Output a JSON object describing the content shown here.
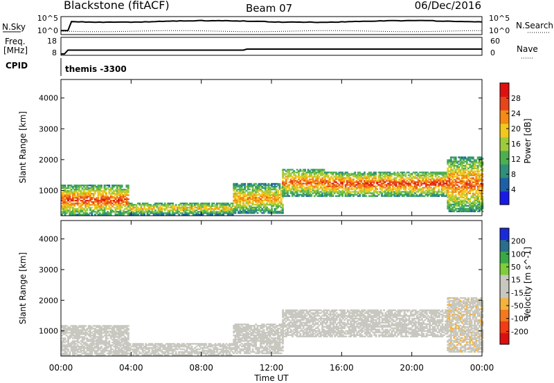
{
  "header": {
    "station": "Blackstone (fitACF)",
    "beam": "Beam 07",
    "date": "06/Dec/2016"
  },
  "noise_panel": {
    "left_label": "N.Sky",
    "right_label": "N.Search",
    "left_ticks": [
      "10^5",
      "10^0"
    ],
    "right_ticks": [
      "10^5",
      "10^0"
    ],
    "line_styles": {
      "sky": "solid",
      "search": "dotted"
    }
  },
  "freq_panel": {
    "left_label_1": "Freq.",
    "left_label_2": "[MHz]",
    "right_label": "Nave",
    "left_ticks": [
      "18",
      "8"
    ],
    "right_ticks": [
      "60",
      "0"
    ],
    "line_styles": {
      "freq": "solid",
      "nave": "dotted"
    }
  },
  "cpid_panel": {
    "label": "CPID",
    "text": "themis -3300"
  },
  "colors": {
    "power_scale": [
      "#1a1ae6",
      "#1f5fa8",
      "#2f8f7a",
      "#4caf50",
      "#9ecb3c",
      "#f2c81e",
      "#f58a14",
      "#e8451c",
      "#e01010"
    ],
    "velocity_scale": [
      "#dd1010",
      "#f23c14",
      "#f5781e",
      "#f5b23c",
      "#c8c8c0",
      "#c8c8c0",
      "#7fcc3c",
      "#3aa846",
      "#2a6e8c",
      "#1a2ad8"
    ],
    "ground_scatter": "#c8c8c0"
  },
  "chart_data": [
    {
      "type": "heatmap",
      "title": "",
      "xlabel": "",
      "ylabel": "Slant Range [km]",
      "xlim_hours": [
        0,
        24
      ],
      "ylim": [
        180,
        4600
      ],
      "x_tick_labels": [
        "00:00",
        "04:00",
        "08:00",
        "12:00",
        "16:00",
        "20:00",
        "00:00"
      ],
      "y_tick_labels": [
        "1000",
        "2000",
        "3000",
        "4000"
      ],
      "colorbar": {
        "label": "Power [dB]",
        "ticks": [
          "4",
          "8",
          "12",
          "16",
          "20",
          "24",
          "28"
        ],
        "range": [
          0,
          30
        ]
      },
      "echo_regions": [
        {
          "t": [
            0.0,
            3.8
          ],
          "r_low": 200,
          "r_high": 1150,
          "peak": 26
        },
        {
          "t": [
            3.8,
            9.8
          ],
          "r_low": 200,
          "r_high": 600,
          "peak": 20
        },
        {
          "t": [
            9.8,
            12.6
          ],
          "r_low": 250,
          "r_high": 1200,
          "peak": 22
        },
        {
          "t": [
            12.6,
            15.0
          ],
          "r_low": 800,
          "r_high": 1700,
          "peak": 24
        },
        {
          "t": [
            15.0,
            22.0
          ],
          "r_low": 800,
          "r_high": 1600,
          "peak": 26
        },
        {
          "t": [
            22.0,
            24.0
          ],
          "r_low": 300,
          "r_high": 2100,
          "peak": 24
        }
      ]
    },
    {
      "type": "heatmap",
      "title": "",
      "xlabel": "Time UT",
      "ylabel": "Slant Range [km]",
      "xlim_hours": [
        0,
        24
      ],
      "ylim": [
        180,
        4600
      ],
      "x_tick_labels": [
        "00:00",
        "04:00",
        "08:00",
        "12:00",
        "16:00",
        "20:00",
        "00:00"
      ],
      "y_tick_labels": [
        "1000",
        "2000",
        "3000",
        "4000"
      ],
      "colorbar": {
        "label": "Velocity [m s^-1]",
        "ticks": [
          "-200",
          "-100",
          "-50",
          "-15",
          "15",
          "50",
          "100",
          "200"
        ],
        "range": [
          -250,
          250
        ]
      },
      "echo_regions": [
        {
          "t": [
            0.0,
            3.8
          ],
          "r_low": 200,
          "r_high": 1150,
          "velocity": 0
        },
        {
          "t": [
            3.8,
            9.8
          ],
          "r_low": 200,
          "r_high": 600,
          "velocity": 30
        },
        {
          "t": [
            9.8,
            12.6
          ],
          "r_low": 250,
          "r_high": 1200,
          "velocity": 0
        },
        {
          "t": [
            12.6,
            22.0
          ],
          "r_low": 800,
          "r_high": 1700,
          "velocity": 0
        },
        {
          "t": [
            22.0,
            24.0
          ],
          "r_low": 300,
          "r_high": 2100,
          "velocity": -40
        }
      ]
    }
  ]
}
